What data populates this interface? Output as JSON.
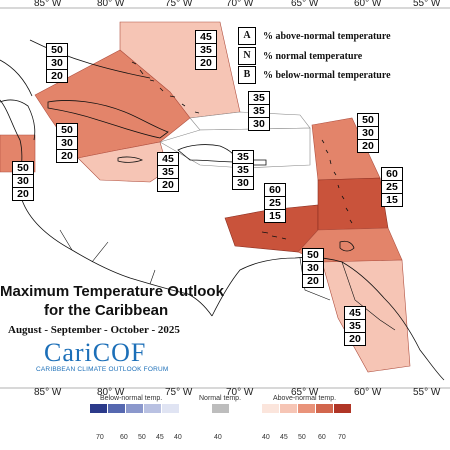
{
  "map": {
    "top_lon_labels": [
      "85° W",
      "80° W",
      "75° W",
      "70° W",
      "65° W",
      "60° W",
      "55° W"
    ],
    "bottom_lon_labels": [
      "85° W",
      "80° W",
      "75° W",
      "70° W",
      "65° W",
      "60° W",
      "55° W"
    ]
  },
  "legend": {
    "a_key": "A",
    "a_text": "% above-normal temperature",
    "n_key": "N",
    "n_text": "% normal temperature",
    "b_key": "B",
    "b_text": "% below-normal temperature"
  },
  "title": {
    "line1": "Maximum Temperature Outlook",
    "line2": "for the Caribbean",
    "period": "August - September - October - 2025"
  },
  "logo": {
    "name": "CariCOF",
    "subtitle": "CARIBBEAN CLIMATE OUTLOOK FORUM"
  },
  "regions": [
    {
      "name": "bahamas",
      "above": "45",
      "normal": "35",
      "below": "20",
      "color": "#f6c5b5"
    },
    {
      "name": "cuba",
      "above": "50",
      "normal": "30",
      "below": "20",
      "color": "#e3846a"
    },
    {
      "name": "belize",
      "above": "50",
      "normal": "30",
      "below": "20",
      "color": "#e3846a"
    },
    {
      "name": "jamaica",
      "above": "45",
      "normal": "35",
      "below": "20",
      "color": "#f6c5b5"
    },
    {
      "name": "turks-caicos",
      "above": "35",
      "normal": "35",
      "below": "30",
      "color": "#ffffff"
    },
    {
      "name": "hispaniola",
      "above": "35",
      "normal": "35",
      "below": "30",
      "color": "#ffffff"
    },
    {
      "name": "leeward-islands",
      "above": "50",
      "normal": "30",
      "below": "20",
      "color": "#e3846a"
    },
    {
      "name": "puerto-rico",
      "above": "60",
      "normal": "25",
      "below": "15",
      "color": "#c9533b"
    },
    {
      "name": "windward-islands",
      "above": "60",
      "normal": "25",
      "below": "15",
      "color": "#c9533b"
    },
    {
      "name": "abc-islands",
      "above": "50",
      "normal": "30",
      "below": "20",
      "color": "#e3846a"
    },
    {
      "name": "guianas",
      "above": "45",
      "normal": "35",
      "below": "20",
      "color": "#f6c5b5"
    }
  ],
  "colorbar": {
    "below_title": "Below-normal temp.",
    "normal_title": "Normal temp.",
    "above_title": "Above-normal temp.",
    "below_ticks": [
      "70",
      "60",
      "50",
      "45",
      "40"
    ],
    "normal_ticks": [
      "40"
    ],
    "above_ticks": [
      "40",
      "45",
      "50",
      "60",
      "70"
    ],
    "below_colors": [
      "#2b3a8a",
      "#5668b0",
      "#8b98cc",
      "#b9c1e2",
      "#e0e4f3"
    ],
    "normal_color": "#bdbdbd",
    "above_colors": [
      "#fbe5dc",
      "#f6c5b5",
      "#e9937a",
      "#d2664d",
      "#b03526"
    ]
  }
}
